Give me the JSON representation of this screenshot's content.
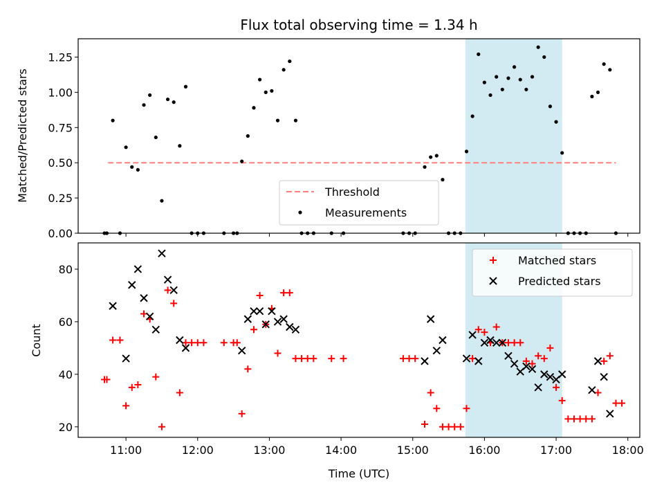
{
  "figure": {
    "title": "Flux total observing time = 1.34 h",
    "xlabel": "Time (UTC)"
  },
  "colors": {
    "span": "#add8e6",
    "threshold": "#ff7f7f",
    "measurement": "#000000",
    "matched": "#ff0000",
    "predicted": "#000000"
  },
  "chart_data": [
    {
      "type": "scatter",
      "panel": "top",
      "ylabel": "Matched/Predicted stars",
      "xlim": [
        "10:20",
        "18:10"
      ],
      "ylim": [
        0,
        1.38
      ],
      "x_ticks": [
        "11:00",
        "12:00",
        "13:00",
        "14:00",
        "15:00",
        "16:00",
        "17:00",
        "18:00"
      ],
      "y_ticks": [
        "0.00",
        "0.25",
        "0.50",
        "0.75",
        "1.00",
        "1.25"
      ],
      "highlight_span": [
        "15:44",
        "17:05"
      ],
      "threshold": {
        "name": "Threshold",
        "value": 0.5,
        "x_range": [
          "10:45",
          "17:50"
        ],
        "style": "dashed"
      },
      "legend": {
        "position": "bottom-center",
        "entries": [
          "Threshold",
          "Measurements"
        ]
      },
      "series": [
        {
          "name": "Measurements",
          "marker": "dot",
          "points": [
            [
              "10:42",
              0
            ],
            [
              "10:44",
              0
            ],
            [
              "10:49",
              0.8
            ],
            [
              "10:55",
              0
            ],
            [
              "11:00",
              0.61
            ],
            [
              "11:05",
              0.47
            ],
            [
              "11:10",
              0.45
            ],
            [
              "11:15",
              0.91
            ],
            [
              "11:20",
              0.98
            ],
            [
              "11:25",
              0.68
            ],
            [
              "11:30",
              0.23
            ],
            [
              "11:35",
              0.95
            ],
            [
              "11:40",
              0.93
            ],
            [
              "11:45",
              0.62
            ],
            [
              "11:50",
              1.04
            ],
            [
              "11:55",
              0
            ],
            [
              "12:00",
              0
            ],
            [
              "12:05",
              0
            ],
            [
              "12:22",
              0
            ],
            [
              "12:30",
              0
            ],
            [
              "12:33",
              0
            ],
            [
              "12:37",
              0.51
            ],
            [
              "12:42",
              0.69
            ],
            [
              "12:47",
              0.89
            ],
            [
              "12:52",
              1.09
            ],
            [
              "12:57",
              1.0
            ],
            [
              "13:02",
              1.01
            ],
            [
              "13:07",
              0.8
            ],
            [
              "13:12",
              1.16
            ],
            [
              "13:17",
              1.22
            ],
            [
              "13:22",
              0.8
            ],
            [
              "13:27",
              0
            ],
            [
              "13:32",
              0
            ],
            [
              "13:37",
              0
            ],
            [
              "13:52",
              0
            ],
            [
              "14:02",
              0
            ],
            [
              "14:52",
              0
            ],
            [
              "14:57",
              0
            ],
            [
              "15:02",
              0
            ],
            [
              "15:10",
              0.47
            ],
            [
              "15:15",
              0.54
            ],
            [
              "15:20",
              0.55
            ],
            [
              "15:25",
              0.38
            ],
            [
              "15:30",
              0
            ],
            [
              "15:35",
              0
            ],
            [
              "15:40",
              0
            ],
            [
              "15:45",
              0.58
            ],
            [
              "15:50",
              0.83
            ],
            [
              "15:55",
              1.27
            ],
            [
              "16:00",
              1.07
            ],
            [
              "16:05",
              0.98
            ],
            [
              "16:10",
              1.11
            ],
            [
              "16:15",
              1.02
            ],
            [
              "16:20",
              1.1
            ],
            [
              "16:25",
              1.18
            ],
            [
              "16:30",
              1.09
            ],
            [
              "16:35",
              1.02
            ],
            [
              "16:40",
              1.11
            ],
            [
              "16:45",
              1.32
            ],
            [
              "16:50",
              1.25
            ],
            [
              "16:55",
              0.9
            ],
            [
              "17:00",
              0.79
            ],
            [
              "17:05",
              0.57
            ],
            [
              "17:10",
              0
            ],
            [
              "17:15",
              0
            ],
            [
              "17:20",
              0
            ],
            [
              "17:25",
              0
            ],
            [
              "17:30",
              0.97
            ],
            [
              "17:35",
              1.0
            ],
            [
              "17:40",
              1.2
            ],
            [
              "17:45",
              1.16
            ],
            [
              "17:50",
              0
            ]
          ]
        }
      ]
    },
    {
      "type": "scatter",
      "panel": "bottom",
      "ylabel": "Count",
      "xlim": [
        "10:20",
        "18:10"
      ],
      "ylim": [
        16,
        90
      ],
      "x_ticks": [
        "11:00",
        "12:00",
        "13:00",
        "14:00",
        "15:00",
        "16:00",
        "17:00",
        "18:00"
      ],
      "y_ticks": [
        "20",
        "40",
        "60",
        "80"
      ],
      "highlight_span": [
        "15:44",
        "17:05"
      ],
      "legend": {
        "position": "top-right",
        "entries": [
          "Matched stars",
          "Predicted stars"
        ]
      },
      "series": [
        {
          "name": "Matched stars",
          "marker": "plus",
          "points": [
            [
              "10:42",
              38
            ],
            [
              "10:44",
              38
            ],
            [
              "10:49",
              53
            ],
            [
              "10:55",
              53
            ],
            [
              "11:00",
              28
            ],
            [
              "11:05",
              35
            ],
            [
              "11:10",
              36
            ],
            [
              "11:15",
              63
            ],
            [
              "11:20",
              61
            ],
            [
              "11:25",
              39
            ],
            [
              "11:30",
              20
            ],
            [
              "11:35",
              72
            ],
            [
              "11:40",
              67
            ],
            [
              "11:45",
              33
            ],
            [
              "11:50",
              52
            ],
            [
              "11:55",
              52
            ],
            [
              "12:00",
              52
            ],
            [
              "12:05",
              52
            ],
            [
              "12:22",
              52
            ],
            [
              "12:30",
              52
            ],
            [
              "12:33",
              52
            ],
            [
              "12:37",
              25
            ],
            [
              "12:42",
              42
            ],
            [
              "12:47",
              57
            ],
            [
              "12:52",
              70
            ],
            [
              "12:57",
              59
            ],
            [
              "13:02",
              65
            ],
            [
              "13:07",
              48
            ],
            [
              "13:12",
              71
            ],
            [
              "13:17",
              71
            ],
            [
              "13:22",
              46
            ],
            [
              "13:27",
              46
            ],
            [
              "13:32",
              46
            ],
            [
              "13:37",
              46
            ],
            [
              "13:52",
              46
            ],
            [
              "14:02",
              46
            ],
            [
              "14:52",
              46
            ],
            [
              "14:57",
              46
            ],
            [
              "15:02",
              46
            ],
            [
              "15:10",
              21
            ],
            [
              "15:15",
              33
            ],
            [
              "15:20",
              27
            ],
            [
              "15:25",
              20
            ],
            [
              "15:30",
              20
            ],
            [
              "15:35",
              20
            ],
            [
              "15:40",
              20
            ],
            [
              "15:45",
              27
            ],
            [
              "15:50",
              46
            ],
            [
              "15:55",
              57
            ],
            [
              "16:00",
              56
            ],
            [
              "16:05",
              52
            ],
            [
              "16:10",
              58
            ],
            [
              "16:15",
              52
            ],
            [
              "16:20",
              52
            ],
            [
              "16:25",
              52
            ],
            [
              "16:30",
              52
            ],
            [
              "16:35",
              45
            ],
            [
              "16:40",
              44
            ],
            [
              "16:45",
              47
            ],
            [
              "16:50",
              46
            ],
            [
              "16:55",
              50
            ],
            [
              "17:00",
              35
            ],
            [
              "17:05",
              30
            ],
            [
              "17:10",
              23
            ],
            [
              "17:15",
              23
            ],
            [
              "17:20",
              23
            ],
            [
              "17:25",
              23
            ],
            [
              "17:30",
              23
            ],
            [
              "17:35",
              33
            ],
            [
              "17:40",
              45
            ],
            [
              "17:45",
              47
            ],
            [
              "17:50",
              29
            ],
            [
              "17:55",
              29
            ]
          ]
        },
        {
          "name": "Predicted stars",
          "marker": "x",
          "points": [
            [
              "10:49",
              66
            ],
            [
              "11:00",
              46
            ],
            [
              "11:05",
              74
            ],
            [
              "11:10",
              80
            ],
            [
              "11:15",
              69
            ],
            [
              "11:20",
              62
            ],
            [
              "11:25",
              57
            ],
            [
              "11:30",
              86
            ],
            [
              "11:35",
              76
            ],
            [
              "11:40",
              72
            ],
            [
              "11:45",
              53
            ],
            [
              "11:50",
              50
            ],
            [
              "12:37",
              49
            ],
            [
              "12:42",
              61
            ],
            [
              "12:47",
              64
            ],
            [
              "12:52",
              64
            ],
            [
              "12:57",
              59
            ],
            [
              "13:02",
              64
            ],
            [
              "13:07",
              60
            ],
            [
              "13:12",
              61
            ],
            [
              "13:17",
              58
            ],
            [
              "13:22",
              57
            ],
            [
              "15:10",
              45
            ],
            [
              "15:15",
              61
            ],
            [
              "15:20",
              49
            ],
            [
              "15:25",
              53
            ],
            [
              "15:45",
              46
            ],
            [
              "15:50",
              55
            ],
            [
              "15:55",
              45
            ],
            [
              "16:00",
              52
            ],
            [
              "16:05",
              53
            ],
            [
              "16:10",
              52
            ],
            [
              "16:15",
              52
            ],
            [
              "16:20",
              47
            ],
            [
              "16:25",
              44
            ],
            [
              "16:30",
              41
            ],
            [
              "16:35",
              43
            ],
            [
              "16:40",
              42
            ],
            [
              "16:45",
              35
            ],
            [
              "16:50",
              40
            ],
            [
              "16:55",
              39
            ],
            [
              "17:00",
              38
            ],
            [
              "17:05",
              40
            ],
            [
              "17:30",
              34
            ],
            [
              "17:35",
              45
            ],
            [
              "17:40",
              39
            ],
            [
              "17:45",
              25
            ]
          ]
        }
      ]
    }
  ]
}
